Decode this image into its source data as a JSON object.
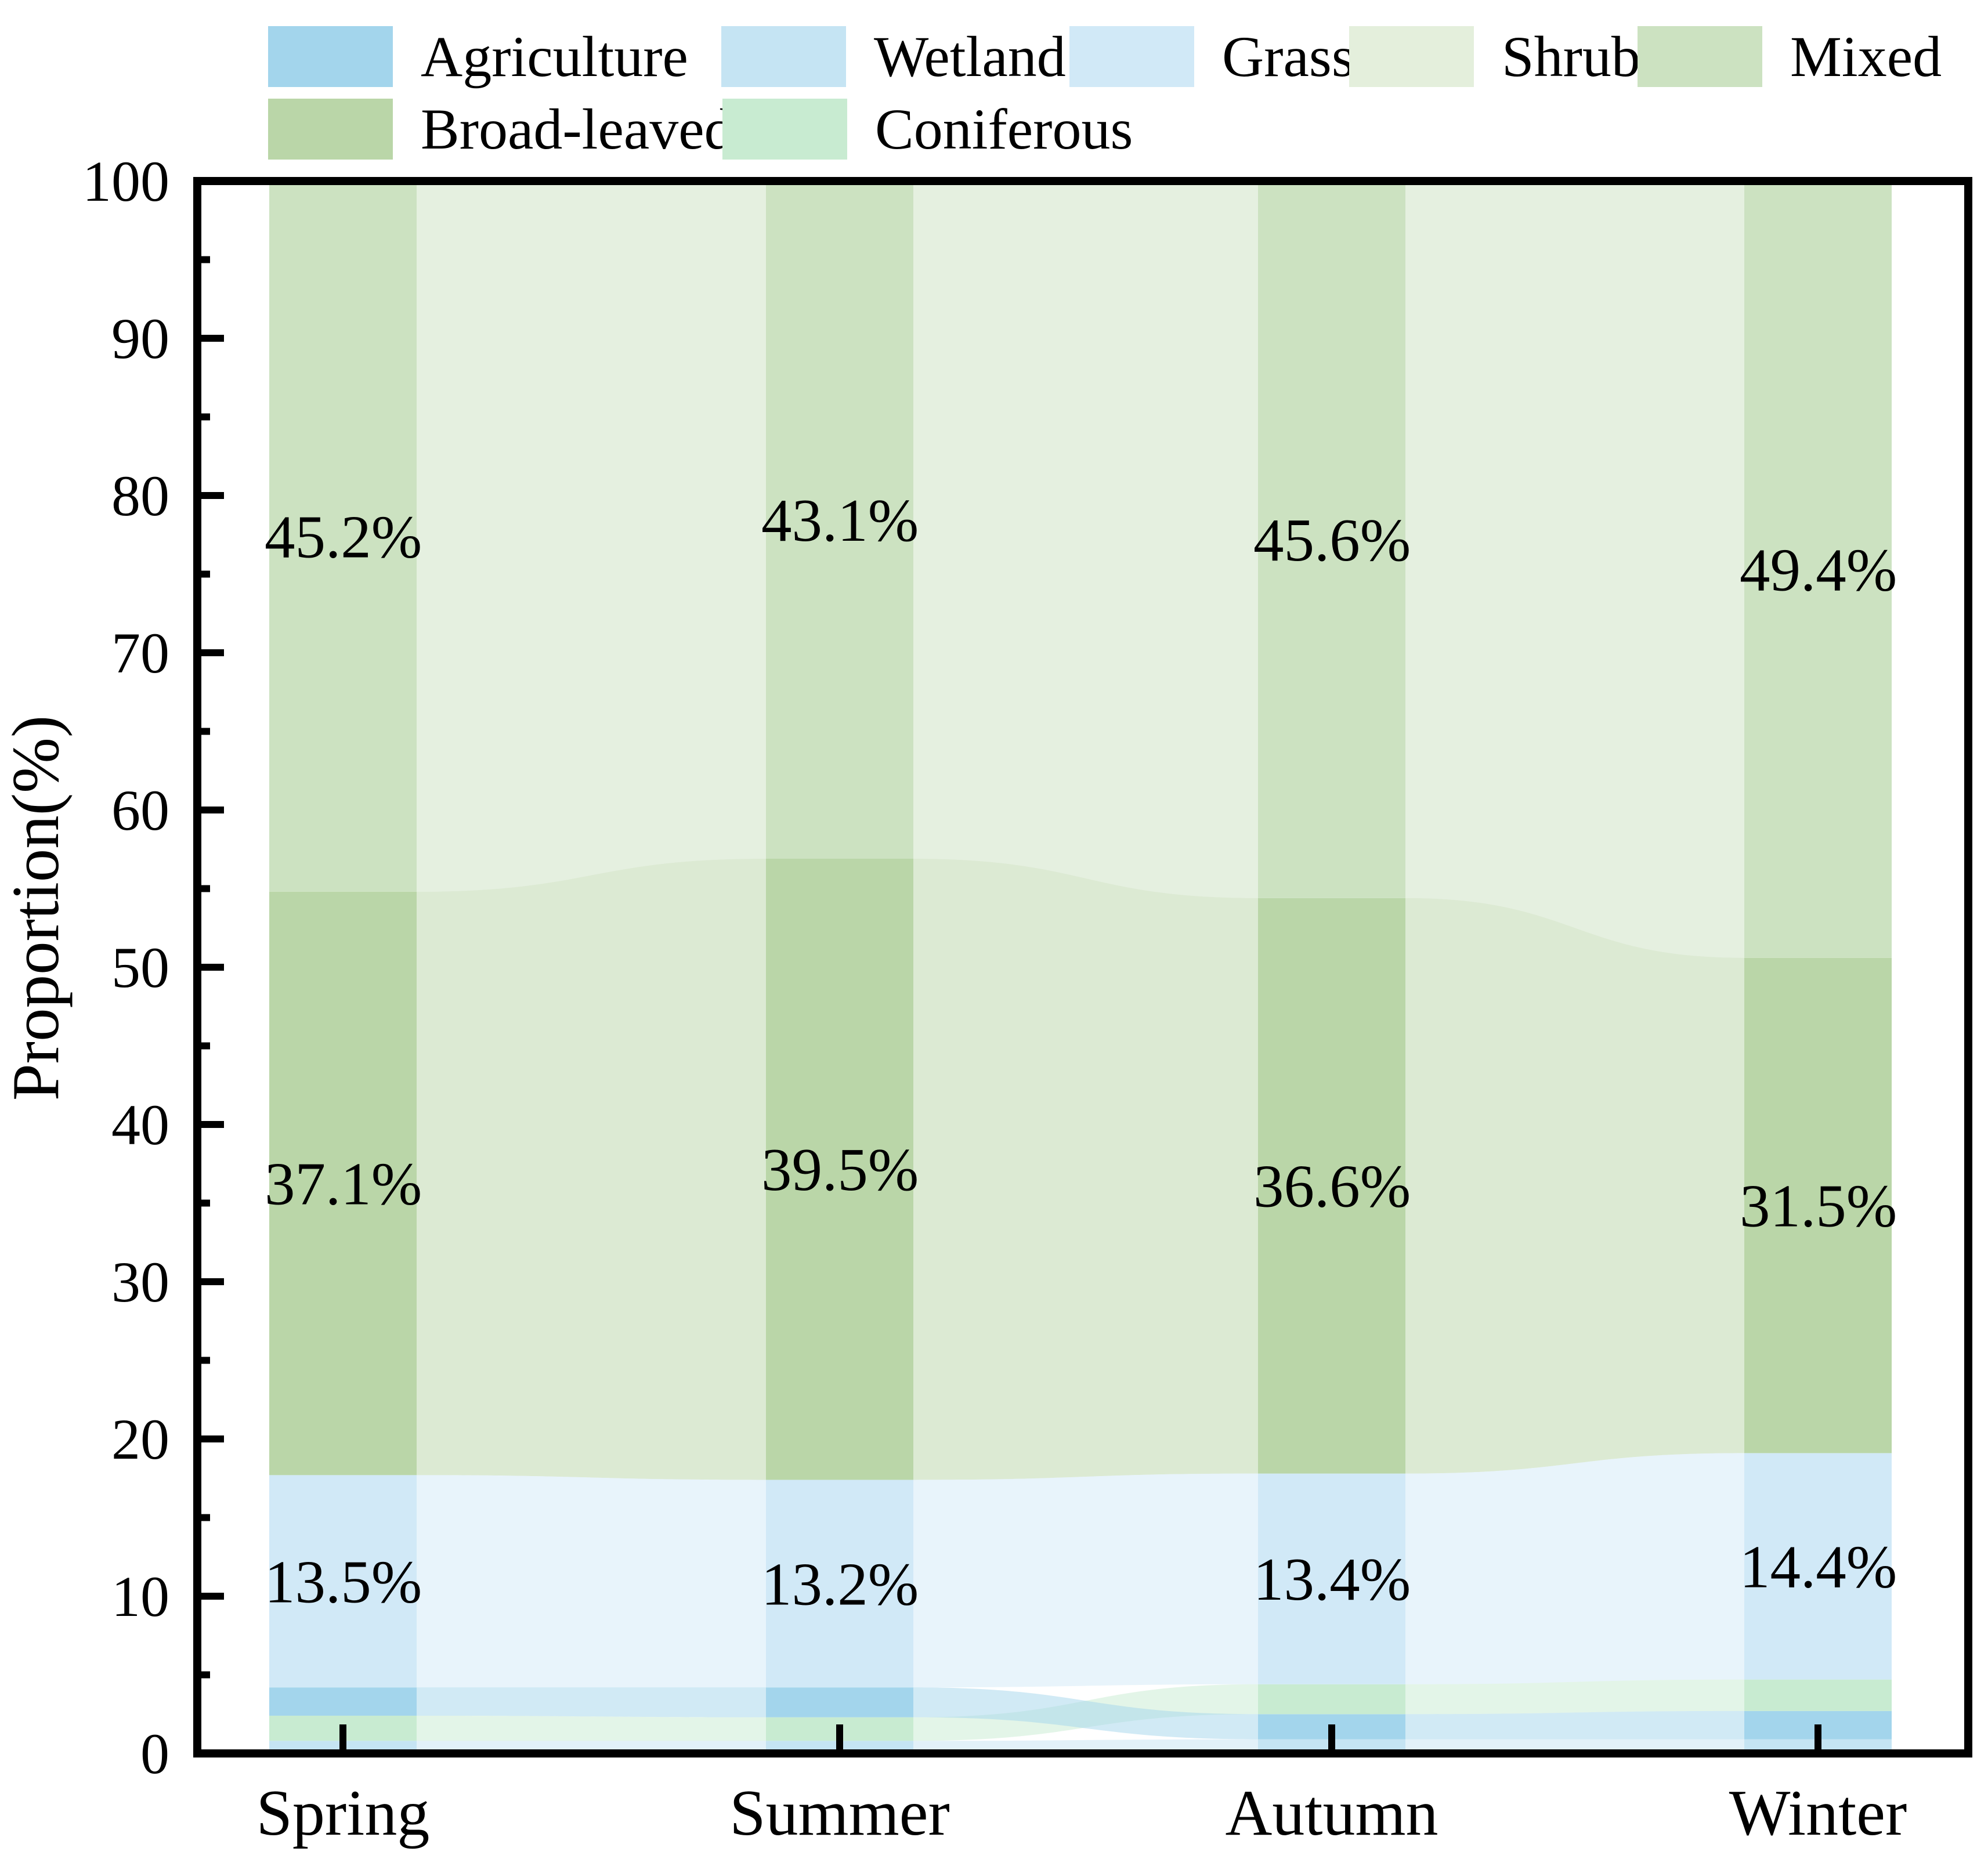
{
  "figure": {
    "background": "#ffffff",
    "axis_color": "#000000",
    "text_color": "#000000"
  },
  "axes": {
    "y_title": "Proportion(%)",
    "x_tick_labels": [
      "Spring",
      "Summer",
      "Autumn",
      "Winter"
    ],
    "y_tick_labels": [
      "0",
      "10",
      "20",
      "30",
      "40",
      "50",
      "60",
      "70",
      "80",
      "90",
      "100"
    ]
  },
  "chart_data": {
    "type": "bar",
    "variant": "stacked_percentage_bars_with_alluvial_flows",
    "title": "",
    "xlabel": "",
    "ylabel": "Proportion(%)",
    "ylim": [
      0,
      100
    ],
    "grid": false,
    "legend_position": "top",
    "flow_opacity": 0.5,
    "categories": [
      "Spring",
      "Summer",
      "Autumn",
      "Winter"
    ],
    "series": [
      {
        "name": "Agriculture",
        "color": "#A3D5EC",
        "values": [
          1.8,
          1.9,
          1.6,
          1.8
        ],
        "labels": [
          "",
          "",
          "",
          ""
        ]
      },
      {
        "name": "Wetland",
        "color": "#C5E4F3",
        "values": [
          0.8,
          0.8,
          0.9,
          0.9
        ],
        "labels": [
          "",
          "",
          "",
          ""
        ]
      },
      {
        "name": "Grass",
        "color": "#D1E9F7",
        "values": [
          13.5,
          13.2,
          13.4,
          14.4
        ],
        "labels": [
          "13.5%",
          "13.2%",
          "13.4%",
          "14.4%"
        ]
      },
      {
        "name": "Shrub",
        "color": "#E4EFDC",
        "values": [
          0,
          0,
          0,
          0
        ],
        "labels": [
          "",
          "",
          "",
          ""
        ]
      },
      {
        "name": "Mixed",
        "color": "#CCE2C1",
        "values": [
          45.2,
          43.1,
          45.6,
          49.4
        ],
        "labels": [
          "45.2%",
          "43.1%",
          "45.6%",
          "49.4%"
        ]
      },
      {
        "name": "Broad-leaved",
        "color": "#BAD6A8",
        "values": [
          37.1,
          39.5,
          36.6,
          31.5
        ],
        "labels": [
          "37.1%",
          "39.5%",
          "36.6%",
          "31.5%"
        ]
      },
      {
        "name": "Coniferous",
        "color": "#C8EBD1",
        "values": [
          1.6,
          1.5,
          1.9,
          2.0
        ],
        "labels": [
          "",
          "",
          "",
          ""
        ]
      }
    ],
    "stack_order_bottom_to_top": {
      "Spring": [
        "Shrub",
        "Wetland",
        "Coniferous",
        "Agriculture",
        "Grass",
        "Broad-leaved",
        "Mixed"
      ],
      "Summer": [
        "Shrub",
        "Wetland",
        "Coniferous",
        "Agriculture",
        "Grass",
        "Broad-leaved",
        "Mixed"
      ],
      "Autumn": [
        "Shrub",
        "Wetland",
        "Agriculture",
        "Coniferous",
        "Grass",
        "Broad-leaved",
        "Mixed"
      ],
      "Winter": [
        "Shrub",
        "Wetland",
        "Agriculture",
        "Coniferous",
        "Grass",
        "Broad-leaved",
        "Mixed"
      ]
    },
    "yticks": {
      "major": [
        0,
        10,
        20,
        30,
        40,
        50,
        60,
        70,
        80,
        90,
        100
      ],
      "minor": [
        5,
        15,
        25,
        35,
        45,
        55,
        65,
        75,
        85,
        95
      ]
    }
  },
  "legend": {
    "row1": [
      "Agriculture",
      "Wetland",
      "Grass",
      "Shrub",
      "Mixed"
    ],
    "row2": [
      "Broad-leaved",
      "Coniferous"
    ]
  }
}
